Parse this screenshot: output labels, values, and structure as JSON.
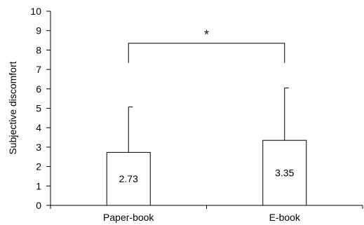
{
  "chart_data": {
    "type": "bar",
    "title": "",
    "xlabel": "",
    "ylabel": "Subjective discomfort",
    "categories": [
      "Paper-book",
      "E-book"
    ],
    "values": [
      2.73,
      3.35
    ],
    "error_upper": [
      5.07,
      6.05
    ],
    "data_labels": [
      "2.73",
      "3.35"
    ],
    "ylim": [
      0,
      10
    ],
    "yticks": [
      0,
      1,
      2,
      3,
      4,
      5,
      6,
      7,
      8,
      9,
      10
    ],
    "grid": false,
    "legend": "none",
    "significance": {
      "between": [
        "Paper-book",
        "E-book"
      ],
      "label": "*",
      "level": 8.35
    },
    "colors": {
      "bar_fill": "#ffffff",
      "bar_stroke": "#000000",
      "axis": "#000000"
    }
  }
}
